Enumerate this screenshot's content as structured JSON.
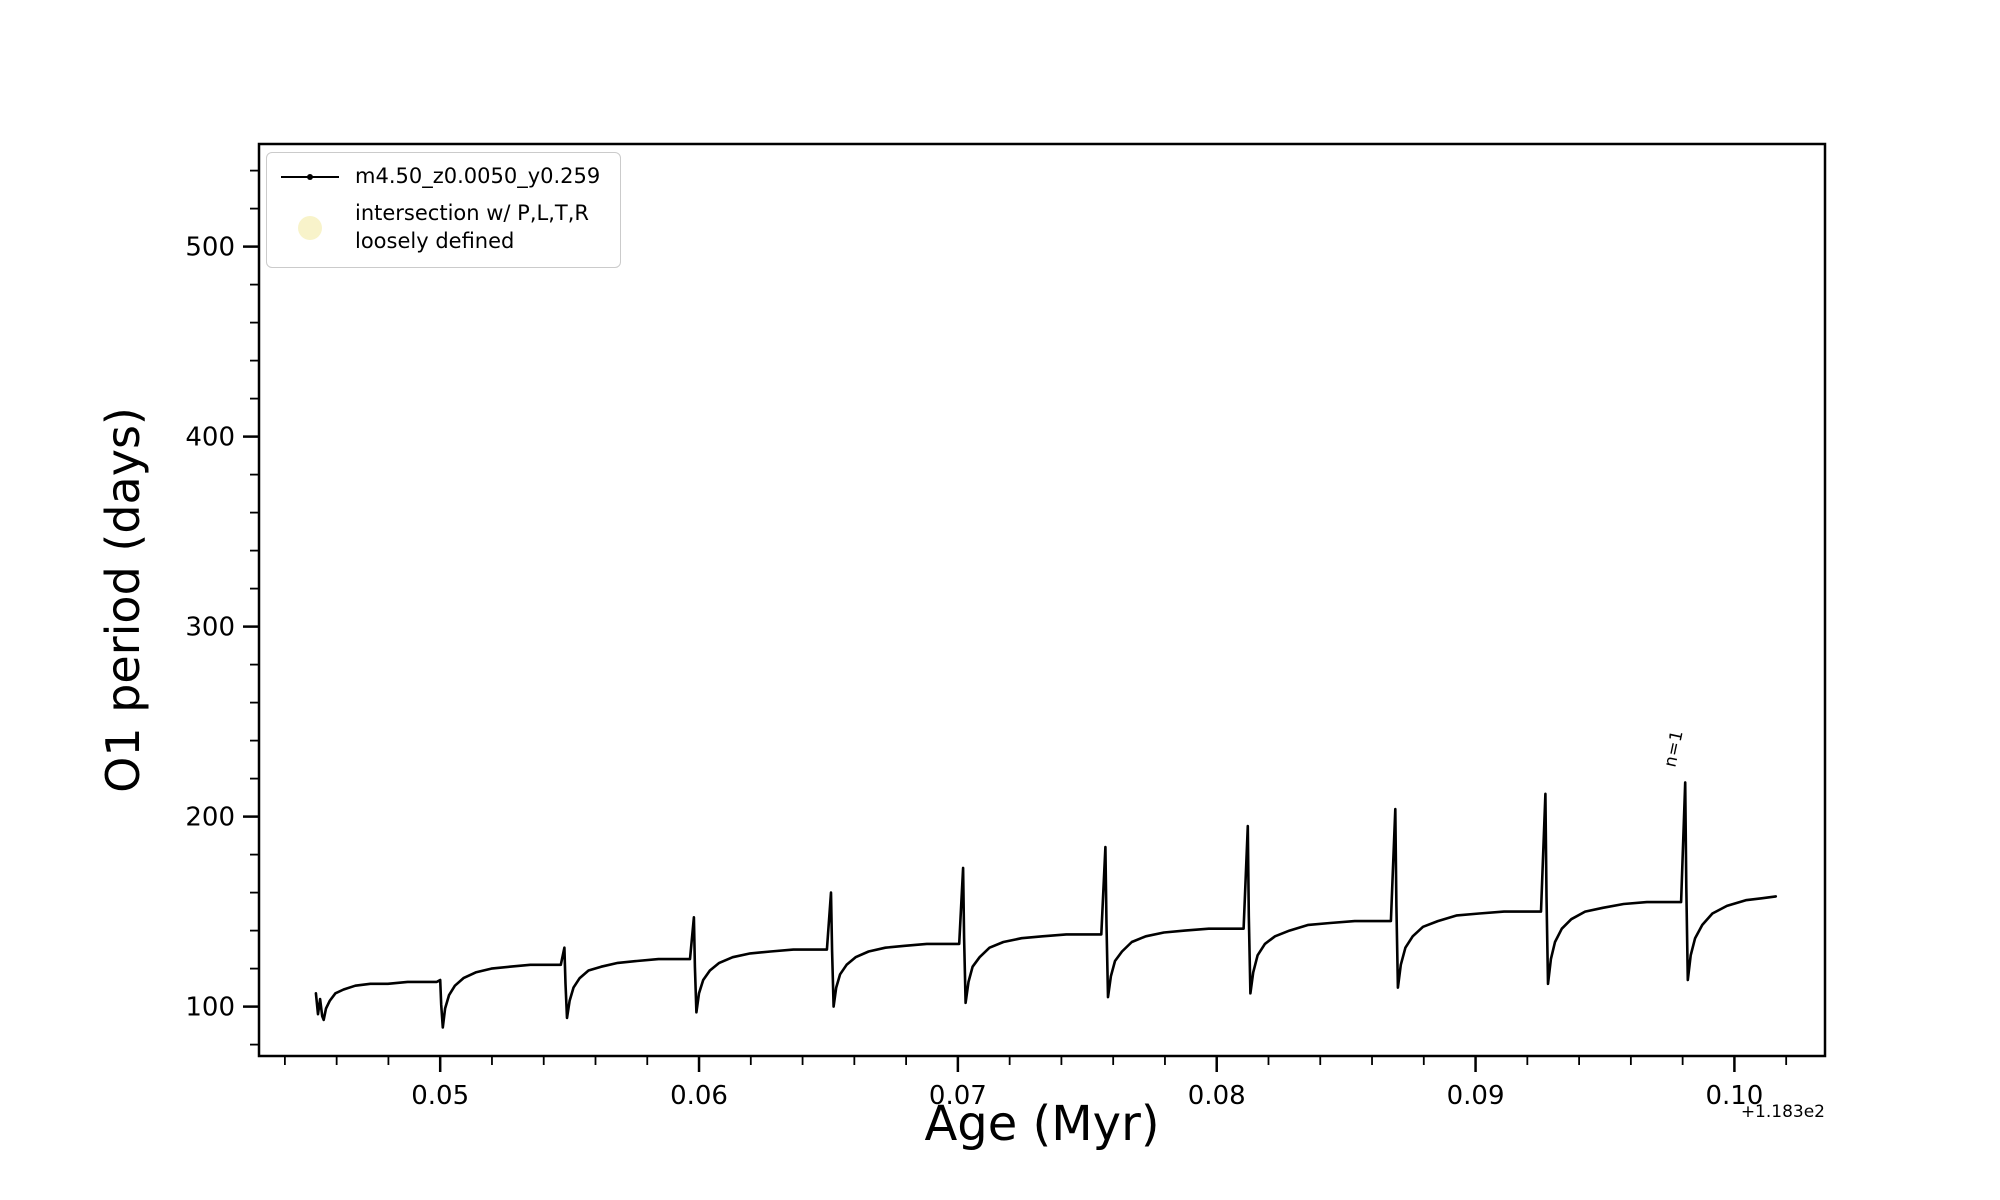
{
  "chart_data": {
    "type": "line",
    "title": "",
    "xlabel": "Age (Myr)",
    "ylabel": "O1 period (days)",
    "x_axis_offset": "+1.183e2",
    "xlim": [
      0.043,
      0.1035
    ],
    "ylim": [
      74,
      554
    ],
    "xticks": [
      0.05,
      0.06,
      0.07,
      0.08,
      0.09,
      0.1
    ],
    "yticks": [
      100,
      200,
      300,
      400,
      500
    ],
    "x_minor_step": 0.002,
    "y_minor_step": 20,
    "grid": false,
    "legend_position": "upper left",
    "annotation": {
      "text": "n=1",
      "x": 0.0979,
      "y": 224,
      "rotation_deg": -78
    },
    "legend": [
      {
        "type": "line-dot",
        "label": "m4.50_z0.0050_y0.259",
        "color": "#000000"
      },
      {
        "type": "circle",
        "label_lines": [
          "intersection w/ P,L,T,R",
          "loosely defined"
        ],
        "color": "rgba(242,234,158,0.55)"
      }
    ],
    "series": [
      {
        "name": "m4.50_z0.0050_y0.259",
        "color": "#000000",
        "marker": ".",
        "points": [
          [
            0.0452,
            107
          ],
          [
            0.04528,
            96
          ],
          [
            0.04536,
            104
          ],
          [
            0.04544,
            95
          ],
          [
            0.0455,
            93
          ],
          [
            0.04559,
            99
          ],
          [
            0.04573,
            103
          ],
          [
            0.04595,
            107
          ],
          [
            0.04627,
            109
          ],
          [
            0.04672,
            111
          ],
          [
            0.0473,
            112
          ],
          [
            0.04798,
            112
          ],
          [
            0.04874,
            113
          ],
          [
            0.04946,
            113
          ],
          [
            0.04987,
            113
          ],
          [
            0.05,
            114
          ],
          [
            0.05004,
            101
          ],
          [
            0.0501,
            89
          ],
          [
            0.05019,
            99
          ],
          [
            0.05034,
            106
          ],
          [
            0.05057,
            111
          ],
          [
            0.0509,
            115
          ],
          [
            0.05137,
            118
          ],
          [
            0.05198,
            120
          ],
          [
            0.05269,
            121
          ],
          [
            0.05348,
            122
          ],
          [
            0.05424,
            122
          ],
          [
            0.05466,
            122
          ],
          [
            0.0548,
            131
          ],
          [
            0.05484,
            112
          ],
          [
            0.0549,
            94
          ],
          [
            0.055,
            103
          ],
          [
            0.05515,
            110
          ],
          [
            0.05539,
            115
          ],
          [
            0.05573,
            119
          ],
          [
            0.05622,
            121
          ],
          [
            0.05686,
            123
          ],
          [
            0.0576,
            124
          ],
          [
            0.05843,
            125
          ],
          [
            0.05921,
            125
          ],
          [
            0.05965,
            125
          ],
          [
            0.0598,
            147
          ],
          [
            0.05984,
            121
          ],
          [
            0.0599,
            97
          ],
          [
            0.06,
            107
          ],
          [
            0.06016,
            114
          ],
          [
            0.06042,
            119
          ],
          [
            0.06078,
            123
          ],
          [
            0.0613,
            126
          ],
          [
            0.06198,
            128
          ],
          [
            0.06276,
            129
          ],
          [
            0.06364,
            130
          ],
          [
            0.06448,
            130
          ],
          [
            0.06494,
            130
          ],
          [
            0.0651,
            160
          ],
          [
            0.06514,
            129
          ],
          [
            0.0652,
            100
          ],
          [
            0.0653,
            110
          ],
          [
            0.06545,
            117
          ],
          [
            0.0657,
            122
          ],
          [
            0.06605,
            126
          ],
          [
            0.06655,
            129
          ],
          [
            0.0672,
            131
          ],
          [
            0.06795,
            132
          ],
          [
            0.0688,
            133
          ],
          [
            0.0696,
            133
          ],
          [
            0.07005,
            133
          ],
          [
            0.0702,
            173
          ],
          [
            0.07024,
            136
          ],
          [
            0.0703,
            102
          ],
          [
            0.07041,
            113
          ],
          [
            0.07057,
            121
          ],
          [
            0.07084,
            126
          ],
          [
            0.07122,
            131
          ],
          [
            0.07176,
            134
          ],
          [
            0.07246,
            136
          ],
          [
            0.07327,
            137
          ],
          [
            0.07419,
            138
          ],
          [
            0.07505,
            138
          ],
          [
            0.07554,
            138
          ],
          [
            0.0757,
            184
          ],
          [
            0.07574,
            143
          ],
          [
            0.0758,
            105
          ],
          [
            0.07591,
            116
          ],
          [
            0.07607,
            124
          ],
          [
            0.07634,
            129
          ],
          [
            0.07672,
            134
          ],
          [
            0.07726,
            137
          ],
          [
            0.07796,
            139
          ],
          [
            0.07877,
            140
          ],
          [
            0.07969,
            141
          ],
          [
            0.08055,
            141
          ],
          [
            0.08104,
            141
          ],
          [
            0.0812,
            195
          ],
          [
            0.08124,
            148
          ],
          [
            0.0813,
            107
          ],
          [
            0.08141,
            118
          ],
          [
            0.08158,
            127
          ],
          [
            0.08186,
            133
          ],
          [
            0.08225,
            137
          ],
          [
            0.08281,
            140
          ],
          [
            0.08354,
            143
          ],
          [
            0.08438,
            144
          ],
          [
            0.08533,
            145
          ],
          [
            0.08623,
            145
          ],
          [
            0.08673,
            145
          ],
          [
            0.0869,
            204
          ],
          [
            0.08694,
            153
          ],
          [
            0.087,
            110
          ],
          [
            0.08711,
            122
          ],
          [
            0.08729,
            131
          ],
          [
            0.08757,
            137
          ],
          [
            0.08797,
            142
          ],
          [
            0.08854,
            145
          ],
          [
            0.08928,
            148
          ],
          [
            0.09014,
            149
          ],
          [
            0.0911,
            150
          ],
          [
            0.09202,
            150
          ],
          [
            0.09253,
            150
          ],
          [
            0.0927,
            212
          ],
          [
            0.09274,
            158
          ],
          [
            0.0928,
            112
          ],
          [
            0.09291,
            125
          ],
          [
            0.09307,
            134
          ],
          [
            0.09333,
            141
          ],
          [
            0.0937,
            146
          ],
          [
            0.09423,
            150
          ],
          [
            0.09492,
            152
          ],
          [
            0.09572,
            154
          ],
          [
            0.09662,
            155
          ],
          [
            0.09746,
            155
          ],
          [
            0.09794,
            155
          ],
          [
            0.0981,
            218
          ],
          [
            0.09814,
            163
          ],
          [
            0.0982,
            114
          ],
          [
            0.09831,
            127
          ],
          [
            0.09848,
            136
          ],
          [
            0.09876,
            143
          ],
          [
            0.09915,
            149
          ],
          [
            0.09971,
            153
          ],
          [
            0.10044,
            156
          ],
          [
            0.10105,
            157
          ],
          [
            0.1016,
            158
          ]
        ]
      }
    ]
  }
}
